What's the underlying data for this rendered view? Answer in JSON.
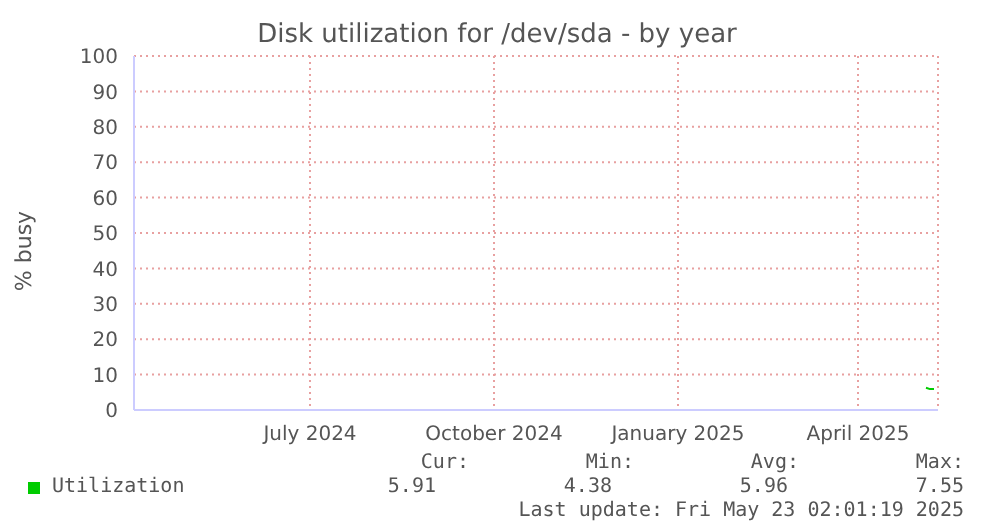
{
  "chart_data": {
    "type": "line",
    "title": "Disk utilization for /dev/sda - by year",
    "ylabel": "% busy",
    "x": [
      "2025-05-19",
      "2025-05-21",
      "2025-05-23"
    ],
    "series": [
      {
        "name": "Utilization",
        "color": "#00cc00",
        "values": [
          6.3,
          5.9,
          5.9
        ]
      }
    ],
    "xlim": [
      "2024-04-18",
      "2025-05-25"
    ],
    "xticks": [
      {
        "value": "2024-07-15",
        "label": "July 2024"
      },
      {
        "value": "2024-10-15",
        "label": "October 2024"
      },
      {
        "value": "2025-01-15",
        "label": "January 2025"
      },
      {
        "value": "2025-04-15",
        "label": "April 2025"
      }
    ],
    "ylim": [
      0,
      100
    ],
    "yticks": [
      0,
      10,
      20,
      30,
      40,
      50,
      60,
      70,
      80,
      90,
      100
    ],
    "grid": true,
    "legend": "bottom",
    "marker": "none",
    "annotations": [
      "Cur:",
      "Min:",
      "Avg:",
      "Max:",
      "5.91",
      "4.38",
      "5.96",
      "7.55",
      "Last update: Fri May 23 02:01:19 2025"
    ]
  }
}
